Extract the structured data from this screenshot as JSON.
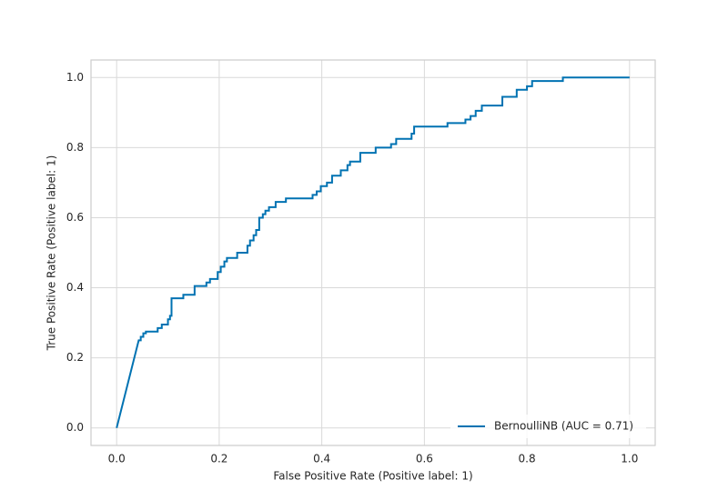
{
  "chart_data": {
    "type": "line",
    "xlabel": "False Positive Rate (Positive label: 1)",
    "ylabel": "True Positive Rate (Positive label: 1)",
    "xlim": [
      -0.05,
      1.05
    ],
    "ylim": [
      -0.05,
      1.05
    ],
    "xticks": [
      {
        "value": 0,
        "label": "0.0"
      },
      0.2,
      0.4,
      0.6,
      0.8,
      {
        "value": 1,
        "label": "1.0"
      }
    ],
    "yticks": [
      {
        "value": 0,
        "label": "0.0"
      },
      0.2,
      0.4,
      0.6,
      0.8,
      {
        "value": 1,
        "label": "1.0"
      }
    ],
    "grid": true,
    "legend": "lower right",
    "series": [
      {
        "name": "BernoulliNB (AUC = 0.71)",
        "color": "#0072b2",
        "x": [
          0,
          0.043,
          0.047,
          0.047,
          0.052,
          0.052,
          0.057,
          0.057,
          0.08,
          0.08,
          0.088,
          0.088,
          0.1,
          0.1,
          0.104,
          0.104,
          0.107,
          0.107,
          0.13,
          0.13,
          0.152,
          0.152,
          0.175,
          0.175,
          0.182,
          0.182,
          0.197,
          0.197,
          0.203,
          0.203,
          0.21,
          0.21,
          0.215,
          0.215,
          0.235,
          0.235,
          0.255,
          0.255,
          0.26,
          0.26,
          0.267,
          0.267,
          0.272,
          0.272,
          0.278,
          0.278,
          0.285,
          0.285,
          0.29,
          0.29,
          0.297,
          0.297,
          0.31,
          0.31,
          0.33,
          0.33,
          0.382,
          0.382,
          0.39,
          0.39,
          0.398,
          0.398,
          0.41,
          0.41,
          0.42,
          0.42,
          0.437,
          0.437,
          0.45,
          0.45,
          0.455,
          0.455,
          0.475,
          0.475,
          0.505,
          0.505,
          0.535,
          0.535,
          0.545,
          0.545,
          0.575,
          0.575,
          0.58,
          0.58,
          0.645,
          0.645,
          0.68,
          0.68,
          0.69,
          0.69,
          0.7,
          0.7,
          0.712,
          0.712,
          0.752,
          0.752,
          0.78,
          0.78,
          0.8,
          0.8,
          0.81,
          0.81,
          0.87,
          0.87,
          1.0
        ],
        "values": [
          0,
          0.25,
          0.25,
          0.26,
          0.26,
          0.27,
          0.27,
          0.275,
          0.275,
          0.285,
          0.285,
          0.295,
          0.295,
          0.31,
          0.31,
          0.32,
          0.32,
          0.37,
          0.37,
          0.38,
          0.38,
          0.405,
          0.405,
          0.415,
          0.415,
          0.425,
          0.425,
          0.445,
          0.445,
          0.46,
          0.46,
          0.475,
          0.475,
          0.485,
          0.485,
          0.5,
          0.5,
          0.52,
          0.52,
          0.535,
          0.535,
          0.55,
          0.55,
          0.565,
          0.565,
          0.6,
          0.6,
          0.61,
          0.61,
          0.62,
          0.62,
          0.63,
          0.63,
          0.645,
          0.645,
          0.655,
          0.655,
          0.665,
          0.665,
          0.675,
          0.675,
          0.69,
          0.69,
          0.7,
          0.7,
          0.72,
          0.72,
          0.735,
          0.735,
          0.75,
          0.75,
          0.76,
          0.76,
          0.785,
          0.785,
          0.8,
          0.8,
          0.81,
          0.81,
          0.825,
          0.825,
          0.84,
          0.84,
          0.86,
          0.86,
          0.87,
          0.87,
          0.88,
          0.88,
          0.89,
          0.89,
          0.905,
          0.905,
          0.92,
          0.92,
          0.945,
          0.945,
          0.965,
          0.965,
          0.975,
          0.975,
          0.99,
          0.99,
          1.0,
          1.0
        ]
      }
    ]
  }
}
